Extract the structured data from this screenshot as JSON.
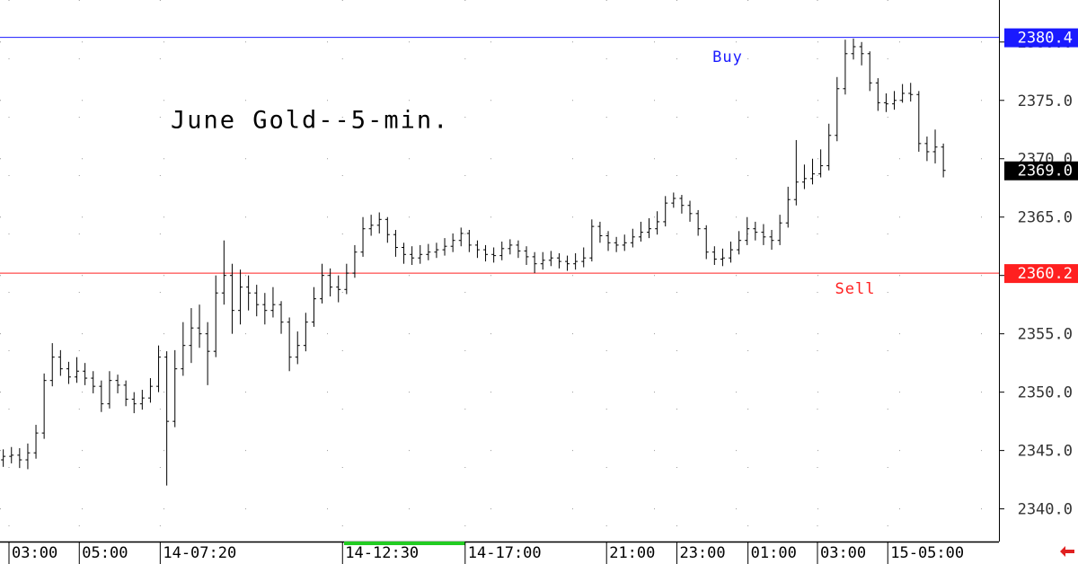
{
  "chart_data": {
    "type": "ohlc",
    "title": "June Gold--5-min.",
    "color": "#000000",
    "open": [
      2344.2,
      2344.5,
      2344.6,
      2344.2,
      2344.8,
      2346.5,
      2351,
      2353,
      2352,
      2351.3,
      2351.8,
      2351.2,
      2350.5,
      2349,
      2351,
      2350.6,
      2349.4,
      2349,
      2349.5,
      2350.5,
      2353,
      2347.5,
      2352,
      2354,
      2355.5,
      2355,
      2353.5,
      2358.5,
      2360,
      2357,
      2359,
      2358.5,
      2357.5,
      2357,
      2357.5,
      2356,
      2353,
      2354,
      2356,
      2358,
      2360,
      2359,
      2358.8,
      2360.2,
      2362,
      2364,
      2364.3,
      2364.8,
      2363.5,
      2362.4,
      2361.8,
      2361.5,
      2361.8,
      2362,
      2362.2,
      2362.5,
      2363,
      2363.6,
      2362.6,
      2362.2,
      2361.8,
      2361.7,
      2362.3,
      2362.6,
      2362.1,
      2361.6,
      2361,
      2361.3,
      2361.5,
      2361.2,
      2361,
      2361.2,
      2361.5,
      2364.2,
      2363.4,
      2362.8,
      2362.6,
      2362.8,
      2363.3,
      2363.7,
      2364,
      2364.6,
      2366.2,
      2366.6,
      2366,
      2365.3,
      2364,
      2362,
      2361.4,
      2361.5,
      2362.2,
      2363,
      2364,
      2363.7,
      2363.3,
      2363,
      2364.5,
      2366.5,
      2368,
      2368.3,
      2368.7,
      2369.4,
      2372,
      2376,
      2379,
      2379.6,
      2379,
      2376.5,
      2374.8,
      2374.7,
      2375,
      2375.6,
      2375.5,
      2371.3,
      2370.6,
      2371
    ],
    "high": [
      2345.1,
      2345.3,
      2345.2,
      2345.6,
      2347.2,
      2351.6,
      2354.2,
      2353.6,
      2352.6,
      2353,
      2352.5,
      2351.8,
      2351,
      2351.8,
      2351.5,
      2351,
      2350,
      2350.2,
      2351.2,
      2354,
      2353.5,
      2353.6,
      2356,
      2357.2,
      2357.5,
      2356,
      2360,
      2363,
      2361,
      2360.5,
      2360,
      2359.2,
      2358.5,
      2359,
      2357.8,
      2356.4,
      2355.2,
      2356.8,
      2359,
      2361,
      2360.6,
      2360,
      2361,
      2362.6,
      2365,
      2365.2,
      2365.4,
      2365,
      2363.9,
      2362.8,
      2362.5,
      2362.6,
      2362.7,
      2362.8,
      2363.2,
      2363.6,
      2364.1,
      2363.9,
      2363,
      2362.6,
      2362.4,
      2362.9,
      2363.1,
      2363,
      2362.5,
      2362,
      2362,
      2362.1,
      2361.9,
      2361.7,
      2361.9,
      2362.4,
      2364.8,
      2364.6,
      2363.8,
      2363.3,
      2363.5,
      2364,
      2364.6,
      2364.9,
      2365.5,
      2366.8,
      2367.1,
      2366.9,
      2366.4,
      2365.6,
      2364.3,
      2362.5,
      2362.3,
      2362.9,
      2363.8,
      2365,
      2364.6,
      2364.4,
      2363.9,
      2365.2,
      2367.6,
      2371.6,
      2369.5,
      2370,
      2370.8,
      2373,
      2377,
      2380.2,
      2380.3,
      2380,
      2379.2,
      2376.9,
      2375.6,
      2375.8,
      2376.4,
      2376.5,
      2375.8,
      2371.9,
      2372.5,
      2371.3
    ],
    "low": [
      2343.6,
      2343.9,
      2343.5,
      2343.4,
      2344.3,
      2346,
      2350.5,
      2351.4,
      2350.7,
      2350.8,
      2350.6,
      2349.9,
      2348.3,
      2348.6,
      2349.9,
      2348.8,
      2348.2,
      2348.5,
      2349.1,
      2350,
      2342,
      2347,
      2351.4,
      2352.5,
      2353.8,
      2350.6,
      2353,
      2357.5,
      2355,
      2355.8,
      2357,
      2356.5,
      2355.8,
      2356.4,
      2355,
      2351.8,
      2352.4,
      2353.5,
      2355.6,
      2357.6,
      2358.2,
      2357.7,
      2358.4,
      2359.8,
      2361.6,
      2363.4,
      2363.6,
      2362.8,
      2361.6,
      2361,
      2360.9,
      2361,
      2361.3,
      2361.5,
      2361.7,
      2362,
      2362.5,
      2362,
      2361.5,
      2361.2,
      2361.1,
      2361.3,
      2361.8,
      2361.5,
      2360.9,
      2360.2,
      2360.5,
      2360.8,
      2360.6,
      2360.4,
      2360.5,
      2360.7,
      2361.2,
      2362.8,
      2362.1,
      2362,
      2362.1,
      2362.4,
      2362.9,
      2363.2,
      2363.5,
      2364.2,
      2365.8,
      2365.3,
      2364.6,
      2363.4,
      2361.4,
      2360.9,
      2360.8,
      2361.1,
      2361.8,
      2362.6,
      2363,
      2362.6,
      2362.2,
      2362.6,
      2364.1,
      2366,
      2367.4,
      2367.8,
      2368.4,
      2369,
      2371.5,
      2375.5,
      2378.5,
      2378,
      2375.8,
      2374.1,
      2374,
      2374.2,
      2374.8,
      2374.9,
      2370.6,
      2369.8,
      2369.6,
      2368.4
    ],
    "close": [
      2344.5,
      2344.6,
      2344.2,
      2344.8,
      2346.5,
      2351,
      2353,
      2352,
      2351.3,
      2351.8,
      2351.2,
      2350.5,
      2349,
      2351,
      2350.6,
      2349.4,
      2349,
      2349.5,
      2350.5,
      2353,
      2347.5,
      2352,
      2354,
      2355.5,
      2355,
      2353.5,
      2358.5,
      2360,
      2357,
      2359,
      2358.5,
      2357.5,
      2357,
      2357.5,
      2356,
      2353,
      2354,
      2356,
      2358,
      2360,
      2359,
      2358.8,
      2360.2,
      2362,
      2364,
      2364.3,
      2364.8,
      2363.5,
      2362.4,
      2361.8,
      2361.5,
      2361.8,
      2362,
      2362.2,
      2362.5,
      2363,
      2363.6,
      2362.6,
      2362.2,
      2361.8,
      2361.7,
      2362.3,
      2362.6,
      2362.1,
      2361.6,
      2361,
      2361.3,
      2361.5,
      2361.2,
      2361,
      2361.2,
      2361.5,
      2364.2,
      2363.4,
      2362.8,
      2362.6,
      2362.8,
      2363.3,
      2363.7,
      2364,
      2364.6,
      2366.2,
      2366.6,
      2366,
      2365.3,
      2364,
      2362,
      2361.4,
      2361.5,
      2362.2,
      2363,
      2364,
      2363.7,
      2363.3,
      2363,
      2364.5,
      2366.5,
      2368,
      2368.3,
      2368.7,
      2369.4,
      2372,
      2376,
      2379,
      2379.6,
      2379,
      2376.5,
      2374.8,
      2374.7,
      2375,
      2375.6,
      2375.5,
      2371.3,
      2370.6,
      2371,
      2369
    ],
    "xlim": [
      -0.4,
      121.8
    ],
    "xticks": [
      {
        "value": 0.7,
        "label": "03:00"
      },
      {
        "value": 9.3,
        "label": "05:00"
      },
      {
        "value": 19.2,
        "label": "14-07:20"
      },
      {
        "value": 41.5,
        "label": "14-12:30"
      },
      {
        "value": 56.5,
        "label": "14-17:00"
      },
      {
        "value": 73.8,
        "label": "21:00"
      },
      {
        "value": 82.4,
        "label": "23:00"
      },
      {
        "value": 91.1,
        "label": "01:00"
      },
      {
        "value": 99.6,
        "label": "03:00"
      },
      {
        "value": 108.2,
        "label": "15-05:00"
      }
    ],
    "ylim": [
      2337.2,
      2383.6
    ],
    "yticks": [
      {
        "value": 2340,
        "label": "2340.0"
      },
      {
        "value": 2345,
        "label": "2345.0"
      },
      {
        "value": 2350,
        "label": "2350.0"
      },
      {
        "value": 2355,
        "label": "2355.0"
      },
      {
        "value": 2360,
        "label": "2360.0"
      },
      {
        "value": 2365,
        "label": "2365.0"
      },
      {
        "value": 2370,
        "label": "2370.0"
      },
      {
        "value": 2375,
        "label": "2375.0"
      },
      {
        "value": 2380,
        "label": "2380.0"
      }
    ],
    "levels": [
      {
        "label": "Buy",
        "value": 2380.4,
        "color": "#1a1aff"
      },
      {
        "label": "Sell",
        "value": 2360.2,
        "color": "#ff2020"
      }
    ],
    "last": {
      "value": 2369,
      "label": "2369.0"
    },
    "grid": true
  }
}
